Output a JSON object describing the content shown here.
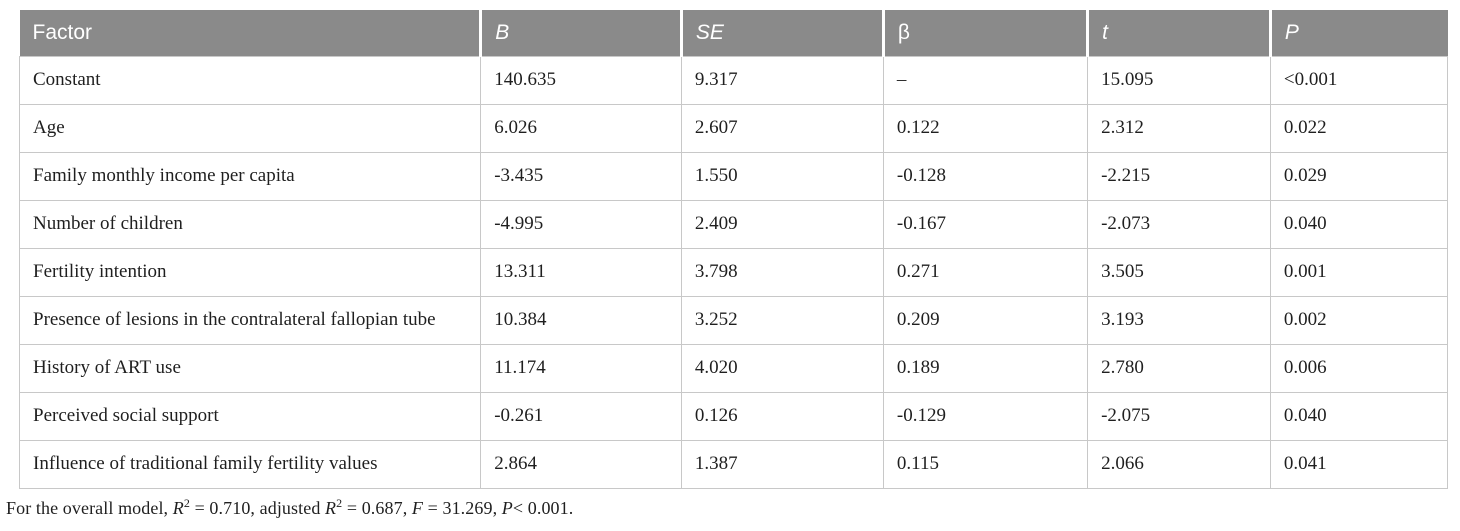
{
  "colors": {
    "header_bg": "#8a8a8a",
    "header_text": "#ffffff",
    "border": "#c8c8c8",
    "body_text": "#1f1f1f"
  },
  "table": {
    "columns": [
      {
        "key": "factor",
        "label": "Factor",
        "italic": false
      },
      {
        "key": "b",
        "label": "B",
        "italic": true
      },
      {
        "key": "se",
        "label": "SE",
        "italic": true
      },
      {
        "key": "beta",
        "label": "β",
        "italic": false
      },
      {
        "key": "t",
        "label": "t",
        "italic": true
      },
      {
        "key": "p",
        "label": "P",
        "italic": true
      }
    ],
    "rows": [
      {
        "factor": "Constant",
        "b": "140.635",
        "se": "9.317",
        "beta": "–",
        "t": "15.095",
        "p": "<0.001"
      },
      {
        "factor": "Age",
        "b": "6.026",
        "se": "2.607",
        "beta": "0.122",
        "t": "2.312",
        "p": "0.022"
      },
      {
        "factor": "Family monthly income per capita",
        "b": "-3.435",
        "se": "1.550",
        "beta": "-0.128",
        "t": "-2.215",
        "p": "0.029"
      },
      {
        "factor": "Number of children",
        "b": "-4.995",
        "se": "2.409",
        "beta": "-0.167",
        "t": "-2.073",
        "p": "0.040"
      },
      {
        "factor": "Fertility intention",
        "b": "13.311",
        "se": "3.798",
        "beta": "0.271",
        "t": "3.505",
        "p": "0.001"
      },
      {
        "factor": "Presence of lesions in the contralateral fallopian tube",
        "b": "10.384",
        "se": "3.252",
        "beta": "0.209",
        "t": "3.193",
        "p": "0.002"
      },
      {
        "factor": "History of ART use",
        "b": "11.174",
        "se": "4.020",
        "beta": "0.189",
        "t": "2.780",
        "p": "0.006"
      },
      {
        "factor": "Perceived social support",
        "b": "-0.261",
        "se": "0.126",
        "beta": "-0.129",
        "t": "-2.075",
        "p": "0.040"
      },
      {
        "factor": "Influence of traditional family fertility values",
        "b": "2.864",
        "se": "1.387",
        "beta": "0.115",
        "t": "2.066",
        "p": "0.041"
      }
    ],
    "footnote": [
      {
        "t": "For the overall model, "
      },
      {
        "t": "R",
        "i": true
      },
      {
        "t": "2",
        "sup": true
      },
      {
        "t": " = 0.710, adjusted "
      },
      {
        "t": "R",
        "i": true
      },
      {
        "t": "2",
        "sup": true
      },
      {
        "t": " = 0.687, "
      },
      {
        "t": "F",
        "i": true
      },
      {
        "t": " = 31.269, "
      },
      {
        "t": "P",
        "i": true
      },
      {
        "t": "< 0.001."
      }
    ]
  }
}
